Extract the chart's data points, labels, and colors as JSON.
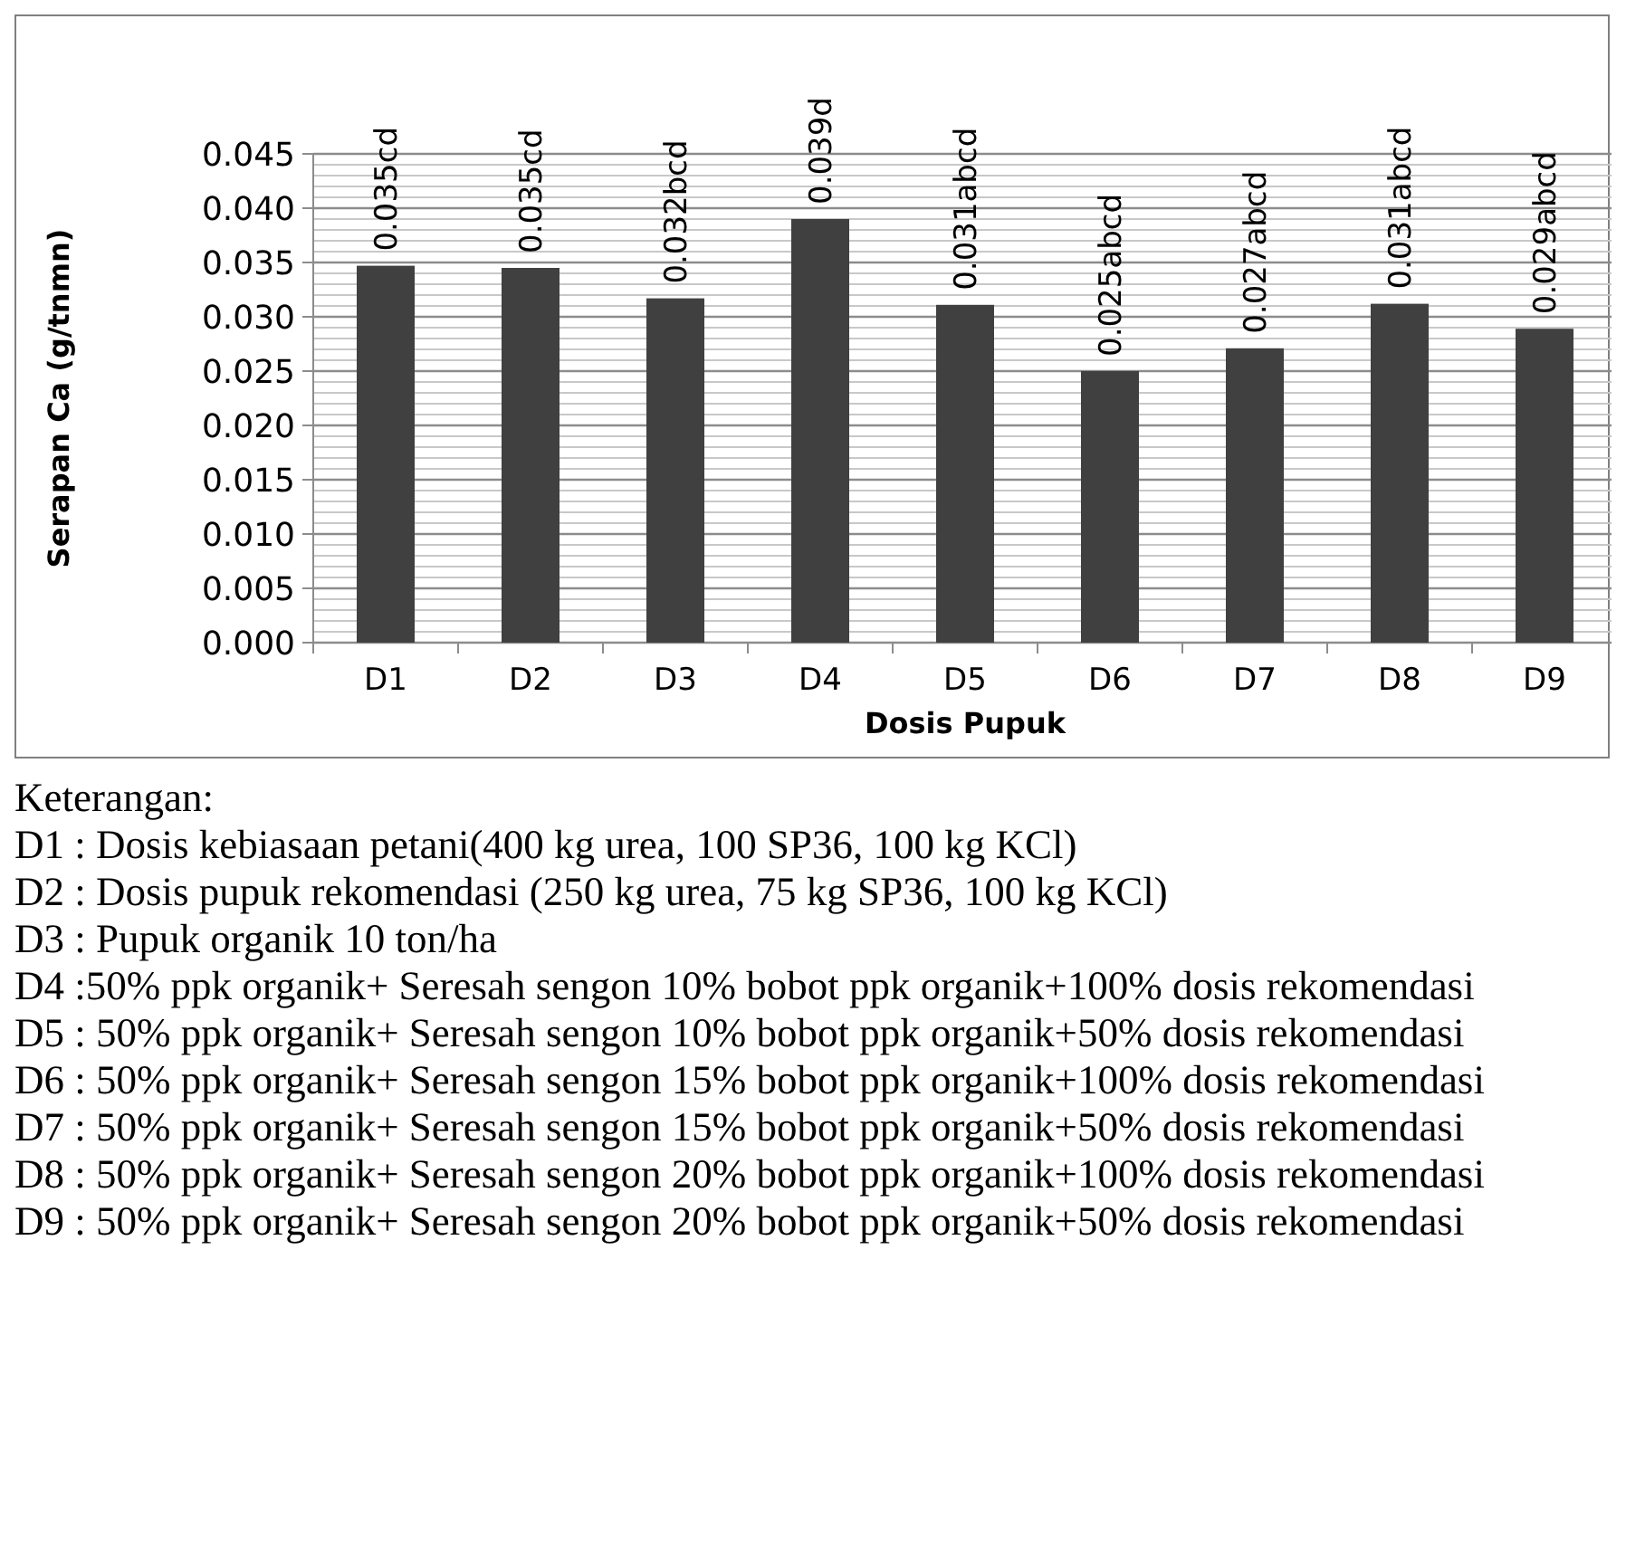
{
  "chart_data": {
    "type": "bar",
    "xlabel": "Dosis Pupuk",
    "ylabel": "Serapan Ca (g/tnmn)",
    "categories": [
      "D1",
      "D2",
      "D3",
      "D4",
      "D5",
      "D6",
      "D7",
      "D8",
      "D9"
    ],
    "values": [
      0.0347,
      0.0345,
      0.0317,
      0.039,
      0.0311,
      0.025,
      0.0271,
      0.0312,
      0.0289
    ],
    "value_labels": [
      "0.035cd",
      "0.035cd",
      "0.032bcd",
      "0.039d",
      "0.031abcd",
      "0.025abcd",
      "0.027abcd",
      "0.031abcd",
      "0.029abcd"
    ],
    "color": "#404040",
    "ylim": [
      0,
      0.045
    ],
    "yticks": [
      {
        "value": 0,
        "label": "0.000"
      },
      {
        "value": 0.001,
        "label": null
      },
      {
        "value": 0.002,
        "label": null
      },
      {
        "value": 0.003,
        "label": null
      },
      {
        "value": 0.004,
        "label": null
      },
      {
        "value": 0.005,
        "label": "0.005"
      },
      {
        "value": 0.006,
        "label": null
      },
      {
        "value": 0.007,
        "label": null
      },
      {
        "value": 0.008,
        "label": null
      },
      {
        "value": 0.009,
        "label": null
      },
      {
        "value": 0.01,
        "label": "0.010"
      },
      {
        "value": 0.011,
        "label": null
      },
      {
        "value": 0.012,
        "label": null
      },
      {
        "value": 0.013,
        "label": null
      },
      {
        "value": 0.014,
        "label": null
      },
      {
        "value": 0.015,
        "label": "0.015"
      },
      {
        "value": 0.016,
        "label": null
      },
      {
        "value": 0.017,
        "label": null
      },
      {
        "value": 0.018,
        "label": null
      },
      {
        "value": 0.019,
        "label": null
      },
      {
        "value": 0.02,
        "label": "0.020"
      },
      {
        "value": 0.021,
        "label": null
      },
      {
        "value": 0.022,
        "label": null
      },
      {
        "value": 0.023,
        "label": null
      },
      {
        "value": 0.024,
        "label": null
      },
      {
        "value": 0.025,
        "label": "0.025"
      },
      {
        "value": 0.026,
        "label": null
      },
      {
        "value": 0.027,
        "label": null
      },
      {
        "value": 0.028,
        "label": null
      },
      {
        "value": 0.029,
        "label": null
      },
      {
        "value": 0.03,
        "label": "0.030"
      },
      {
        "value": 0.031,
        "label": null
      },
      {
        "value": 0.032,
        "label": null
      },
      {
        "value": 0.033,
        "label": null
      },
      {
        "value": 0.034,
        "label": null
      },
      {
        "value": 0.035,
        "label": "0.035"
      },
      {
        "value": 0.036,
        "label": null
      },
      {
        "value": 0.037,
        "label": null
      },
      {
        "value": 0.038,
        "label": null
      },
      {
        "value": 0.039,
        "label": null
      },
      {
        "value": 0.04,
        "label": "0.040"
      },
      {
        "value": 0.041,
        "label": null
      },
      {
        "value": 0.042,
        "label": null
      },
      {
        "value": 0.043,
        "label": null
      },
      {
        "value": 0.044,
        "label": null
      },
      {
        "value": 0.045,
        "label": "0.045"
      }
    ],
    "grid": "y",
    "annotations": [
      "Keterangan:",
      "D1 : Dosis kebiasaan petani(400 kg urea, 100 SP36, 100 kg KCl)",
      "D2 : Dosis pupuk rekomendasi (250 kg urea, 75 kg SP36, 100 kg KCl)",
      "D3 : Pupuk organik 10 ton/ha",
      "D4 :50% ppk organik+ Seresah sengon 10% bobot ppk organik+100% dosis rekomendasi",
      "D5 : 50% ppk organik+ Seresah sengon 10% bobot ppk organik+50% dosis rekomendasi",
      "D6 : 50% ppk organik+ Seresah sengon 15% bobot ppk organik+100% dosis rekomendasi",
      "D7 : 50% ppk organik+ Seresah sengon 15% bobot ppk organik+50% dosis rekomendasi",
      "D8 : 50% ppk organik+ Seresah sengon 20% bobot ppk organik+100% dosis rekomendasi",
      "D9 : 50% ppk organik+ Seresah sengon 20% bobot ppk organik+50% dosis rekomendasi"
    ]
  }
}
